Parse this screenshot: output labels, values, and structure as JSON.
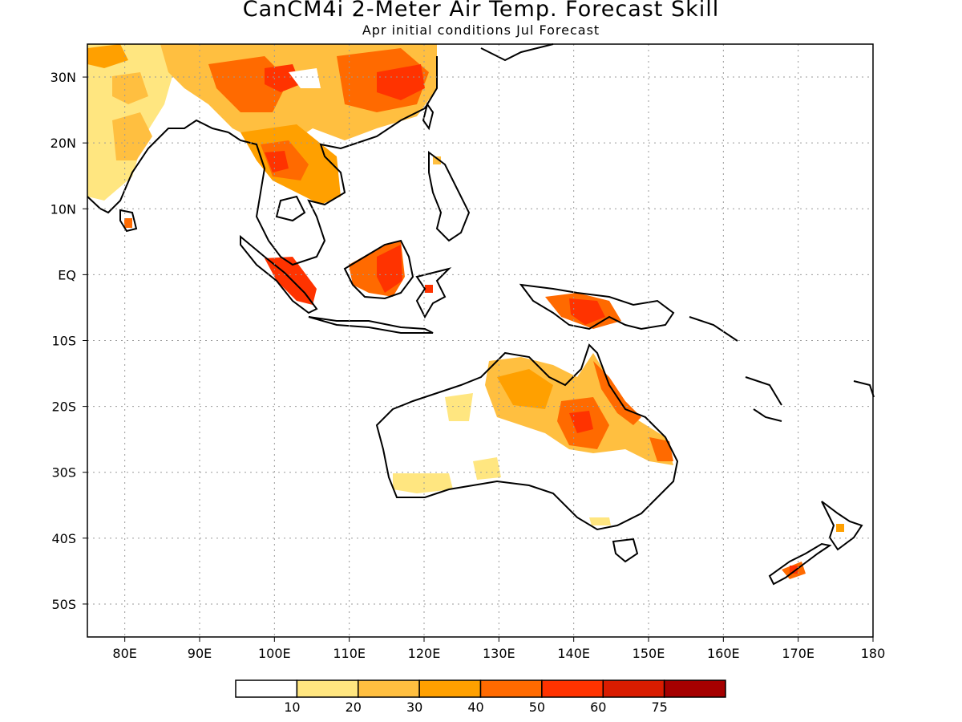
{
  "title": "CanCM4i 2-Meter Air Temp. Forecast Skill",
  "subtitle": "Apr initial conditions  Jul Forecast",
  "map": {
    "projection": "lat-lon",
    "lon_range": [
      75,
      180
    ],
    "lat_range": [
      -55,
      35
    ],
    "grid": true,
    "lon_ticks": [
      {
        "value": 80,
        "label": "80E"
      },
      {
        "value": 90,
        "label": "90E"
      },
      {
        "value": 100,
        "label": "100E"
      },
      {
        "value": 110,
        "label": "110E"
      },
      {
        "value": 120,
        "label": "120E"
      },
      {
        "value": 130,
        "label": "130E"
      },
      {
        "value": 140,
        "label": "140E"
      },
      {
        "value": 150,
        "label": "150E"
      },
      {
        "value": 160,
        "label": "160E"
      },
      {
        "value": 170,
        "label": "170E"
      },
      {
        "value": 180,
        "label": "180"
      }
    ],
    "lat_ticks": [
      {
        "value": 30,
        "label": "30N"
      },
      {
        "value": 20,
        "label": "20N"
      },
      {
        "value": 10,
        "label": "10N"
      },
      {
        "value": 0,
        "label": "EQ"
      },
      {
        "value": -10,
        "label": "10S"
      },
      {
        "value": -20,
        "label": "20S"
      },
      {
        "value": -30,
        "label": "30S"
      },
      {
        "value": -40,
        "label": "40S"
      },
      {
        "value": -50,
        "label": "50S"
      }
    ]
  },
  "colorbar": {
    "colors": [
      "#ffffff",
      "#ffe680",
      "#ffbf40",
      "#ffa000",
      "#ff6a00",
      "#ff3300",
      "#d91c00",
      "#a50000"
    ],
    "labels": [
      "10",
      "20",
      "30",
      "40",
      "50",
      "60",
      "75"
    ]
  },
  "colors": {
    "white": "#ffffff",
    "c10": "#ffe680",
    "c20": "#ffbf40",
    "c30": "#ffa000",
    "c40": "#ff6a00",
    "c50": "#ff3300",
    "c60": "#d91c00",
    "c75": "#a50000"
  }
}
